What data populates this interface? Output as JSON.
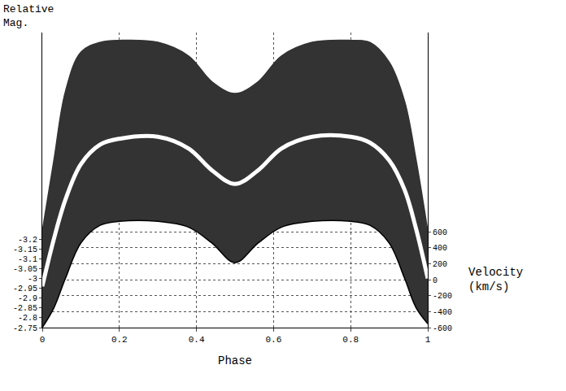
{
  "chart_data": {
    "type": "area",
    "y_label": "Relative Mag.",
    "y2_label": "Velocity (km/s)",
    "x_label": "Phase",
    "x": [
      0,
      0.03,
      0.06,
      0.1,
      0.15,
      0.2,
      0.3,
      0.38,
      0.44,
      0.5,
      0.56,
      0.62,
      0.7,
      0.8,
      0.85,
      0.9,
      0.94,
      0.97,
      1
    ],
    "series": [
      {
        "type": "line",
        "color": "#000000",
        "values": [
          -2.75,
          -2.85,
          -3.0,
          -3.18,
          -3.27,
          -3.29,
          -3.29,
          -3.26,
          -3.18,
          -3.08,
          -3.18,
          -3.26,
          -3.29,
          -3.29,
          -3.27,
          -3.18,
          -3.0,
          -2.85,
          -2.77
        ]
      },
      {
        "type": "area",
        "color": "#333333",
        "values": [
          -3.24,
          -3.6,
          -3.95,
          -4.15,
          -4.2,
          -4.21,
          -4.2,
          -4.13,
          -4.0,
          -3.94,
          -4.0,
          -4.13,
          -4.2,
          -4.21,
          -4.2,
          -4.1,
          -3.9,
          -3.6,
          -3.24
        ]
      },
      {
        "type": "line",
        "color": "#ffffff",
        "values": [
          -2.96,
          -3.2,
          -3.4,
          -3.58,
          -3.68,
          -3.71,
          -3.72,
          -3.66,
          -3.55,
          -3.48,
          -3.55,
          -3.66,
          -3.72,
          -3.72,
          -3.69,
          -3.6,
          -3.45,
          -3.25,
          -3.0
        ]
      }
    ],
    "xlim": [
      0,
      1
    ],
    "xticks": [
      0,
      0.2,
      0.4,
      0.6,
      0.8,
      1
    ],
    "ylim": [
      -2.75,
      -4.25
    ],
    "yticks": [
      -2.75,
      -2.8,
      -2.85,
      -2.9,
      -2.95,
      -3,
      -3.05,
      -3.1,
      -3.15,
      -3.2
    ],
    "y2lim": [
      -600,
      3100
    ],
    "y2ticks": [
      -600,
      -400,
      -200,
      0,
      200,
      400,
      600
    ],
    "grid": true
  }
}
